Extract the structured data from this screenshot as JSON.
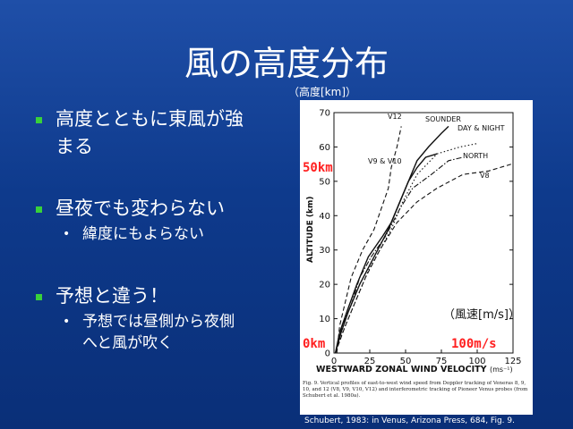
{
  "slide": {
    "title": "風の高度分布",
    "bullets": [
      {
        "text": "高度とともに東風が強",
        "text2": "まる"
      },
      {
        "text": "昼夜でも変わらない",
        "sub": "緯度にもよらない"
      },
      {
        "text": "予想と違う！",
        "sub": "予想では昼側から夜側",
        "sub2": "へと風が吹く"
      }
    ],
    "unit_height": "（高度[km]）",
    "unit_speed": "（風速[m/s]）",
    "label_50km": "50km",
    "label_0km": "0km",
    "label_100ms": "100m/s",
    "credit": "Schubert, 1983: in Venus, Arizona Press, 684, Fig. 9.",
    "caption": "Fig. 9. Vertical profiles of east-to-west wind speed from Doppler tracking of Veneras 8, 9, 10, and 12 (V8, V9, V10, V12) and interferometric tracking of Pioneer Venus probes (from Schubert et al. 1980a)."
  },
  "chart_data": {
    "type": "line",
    "xlabel": "WESTWARD ZONAL WIND VELOCITY",
    "xlabel_unit": "(ms⁻¹)",
    "ylabel": "ALTITUDE (km)",
    "xlim": [
      0,
      125
    ],
    "ylim": [
      0,
      70
    ],
    "xticks": [
      0,
      25,
      50,
      75,
      100,
      125
    ],
    "yticks": [
      0,
      10,
      20,
      30,
      40,
      50,
      60,
      70
    ],
    "series": [
      {
        "name": "V12",
        "style": "dash",
        "points": [
          [
            2,
            0
          ],
          [
            4,
            8
          ],
          [
            8,
            15
          ],
          [
            12,
            22
          ],
          [
            20,
            30
          ],
          [
            28,
            36
          ],
          [
            33,
            42
          ],
          [
            38,
            48
          ],
          [
            40,
            54
          ],
          [
            44,
            60
          ],
          [
            47,
            66
          ]
        ]
      },
      {
        "name": "SOUNDER",
        "style": "solid",
        "points": [
          [
            1,
            0
          ],
          [
            5,
            6
          ],
          [
            10,
            12
          ],
          [
            18,
            20
          ],
          [
            28,
            28
          ],
          [
            38,
            36
          ],
          [
            45,
            43
          ],
          [
            52,
            50
          ],
          [
            58,
            56
          ],
          [
            66,
            60
          ],
          [
            75,
            64
          ],
          [
            80,
            66
          ]
        ]
      },
      {
        "name": "DAY & NIGHT",
        "style": "dot",
        "points": [
          [
            1,
            0
          ],
          [
            6,
            6
          ],
          [
            14,
            14
          ],
          [
            24,
            24
          ],
          [
            32,
            30
          ],
          [
            40,
            36
          ],
          [
            48,
            44
          ],
          [
            58,
            52
          ],
          [
            72,
            58
          ],
          [
            88,
            60
          ],
          [
            100,
            61
          ]
        ]
      },
      {
        "name": "V9 & V10",
        "style": "solid",
        "points": [
          [
            1,
            0
          ],
          [
            4,
            6
          ],
          [
            9,
            12
          ],
          [
            16,
            20
          ],
          [
            24,
            28
          ],
          [
            34,
            34
          ],
          [
            40,
            38
          ],
          [
            46,
            44
          ],
          [
            52,
            50
          ],
          [
            58,
            54
          ],
          [
            64,
            57
          ],
          [
            72,
            58
          ]
        ]
      },
      {
        "name": "NORTH",
        "style": "dashdot",
        "points": [
          [
            1,
            0
          ],
          [
            6,
            8
          ],
          [
            12,
            14
          ],
          [
            18,
            22
          ],
          [
            26,
            28
          ],
          [
            36,
            34
          ],
          [
            46,
            42
          ],
          [
            55,
            48
          ],
          [
            68,
            52
          ],
          [
            80,
            56
          ],
          [
            90,
            57
          ]
        ]
      },
      {
        "name": "V8",
        "style": "dash",
        "points": [
          [
            1,
            0
          ],
          [
            8,
            8
          ],
          [
            14,
            14
          ],
          [
            22,
            22
          ],
          [
            32,
            30
          ],
          [
            44,
            38
          ],
          [
            58,
            44
          ],
          [
            72,
            48
          ],
          [
            90,
            52
          ],
          [
            108,
            53
          ],
          [
            124,
            55
          ]
        ]
      }
    ]
  },
  "colors": {
    "accent": "#39d13a",
    "highlight": "#ff2020",
    "background": "#0e3a8c"
  }
}
